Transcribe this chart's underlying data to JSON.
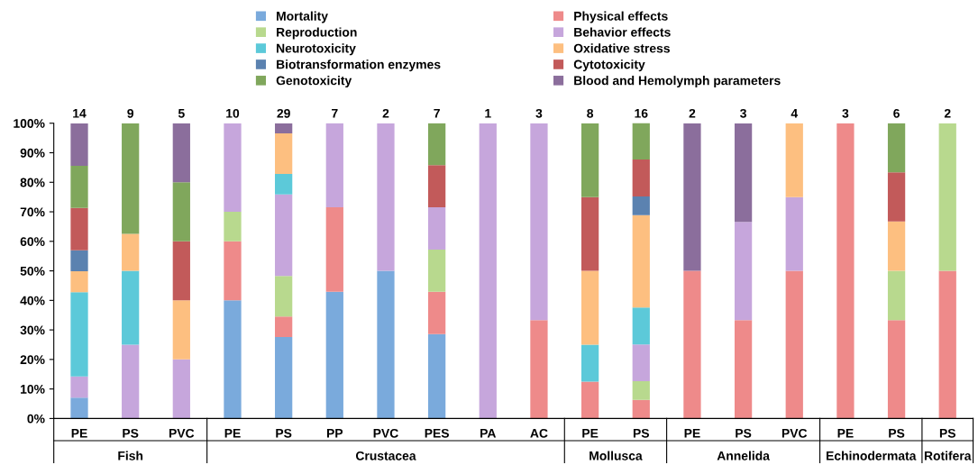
{
  "chart_data": {
    "type": "bar",
    "stacked": true,
    "categories": [
      "PE",
      "PS",
      "PVC",
      "PE",
      "PS",
      "PP",
      "PVC",
      "PES",
      "PA",
      "AC",
      "PE",
      "PS",
      "PE",
      "PS",
      "PVC",
      "PE",
      "PS",
      "PS"
    ],
    "annotations": [
      "14",
      "9",
      "5",
      "10",
      "29",
      "7",
      "2",
      "7",
      "1",
      "3",
      "8",
      "16",
      "2",
      "3",
      "4",
      "3",
      "6",
      "2",
      "Fish",
      "Crustacea",
      "Mollusca",
      "Annelida",
      "Echinodermata",
      "Rotifera"
    ],
    "series": [
      {
        "name": "Mortality",
        "color": "#7aaadc",
        "values": [
          7.1,
          0,
          0,
          40,
          27.6,
          42.9,
          50,
          28.6,
          0,
          0,
          0,
          0,
          0,
          0,
          0,
          0,
          0,
          0
        ]
      },
      {
        "name": "Physical effects",
        "color": "#ee8a8a",
        "values": [
          0,
          0,
          0,
          20,
          6.9,
          28.6,
          0,
          14.3,
          0,
          33.3,
          12.5,
          6.3,
          50,
          33.3,
          50,
          100,
          33.3,
          50
        ]
      },
      {
        "name": "Reproduction",
        "color": "#b8d98e",
        "values": [
          0,
          0,
          0,
          10,
          13.8,
          0,
          0,
          14.3,
          0,
          0,
          0,
          6.3,
          0,
          0,
          0,
          0,
          16.7,
          50
        ]
      },
      {
        "name": "Behavior effects",
        "color": "#c6a6dc",
        "values": [
          7.1,
          25,
          20,
          30,
          27.6,
          28.6,
          50,
          14.3,
          100,
          66.7,
          0,
          12.5,
          0,
          33.3,
          25,
          0,
          0,
          0
        ]
      },
      {
        "name": "Neurotoxicity",
        "color": "#5cc9d9",
        "values": [
          28.6,
          25,
          0,
          0,
          6.9,
          0,
          0,
          0,
          0,
          0,
          12.5,
          12.5,
          0,
          0,
          0,
          0,
          0,
          0
        ]
      },
      {
        "name": "Oxidative stress",
        "color": "#fdbf80",
        "values": [
          7.1,
          12.5,
          20,
          0,
          13.8,
          0,
          0,
          0,
          0,
          0,
          25,
          31.3,
          0,
          0,
          25,
          0,
          16.7,
          0
        ]
      },
      {
        "name": "Biotransformation enzymes",
        "color": "#5b82b0",
        "values": [
          7.1,
          0,
          0,
          0,
          0,
          0,
          0,
          0,
          0,
          0,
          0,
          6.3,
          0,
          0,
          0,
          0,
          0,
          0
        ]
      },
      {
        "name": "Cytotoxicity",
        "color": "#c25a5a",
        "values": [
          14.3,
          0,
          20,
          0,
          0,
          0,
          0,
          14.3,
          0,
          0,
          25,
          12.5,
          0,
          0,
          0,
          0,
          16.7,
          0
        ]
      },
      {
        "name": "Genotoxicity",
        "color": "#80a75c",
        "values": [
          14.3,
          37.5,
          20,
          0,
          0,
          0,
          0,
          14.3,
          0,
          0,
          25,
          12.5,
          0,
          0,
          0,
          0,
          16.7,
          0
        ]
      },
      {
        "name": "Blood and Hemolymph parameters",
        "color": "#8b6e9c",
        "values": [
          14.3,
          0,
          20,
          0,
          3.4,
          0,
          0,
          0,
          0,
          0,
          0,
          0,
          50,
          33.3,
          0,
          0,
          0,
          0
        ]
      }
    ],
    "ylim": [
      0,
      100
    ],
    "yticks": [
      {
        "value": 0,
        "label": "0%"
      },
      {
        "value": 10,
        "label": "10%"
      },
      {
        "value": 20,
        "label": "20%"
      },
      {
        "value": 30,
        "label": "30%"
      },
      {
        "value": 40,
        "label": "40%"
      },
      {
        "value": 50,
        "label": "50%"
      },
      {
        "value": 60,
        "label": "60%"
      },
      {
        "value": 70,
        "label": "70%"
      },
      {
        "value": 80,
        "label": "80%"
      },
      {
        "value": 90,
        "label": "90%"
      },
      {
        "value": 100,
        "label": "100%"
      }
    ],
    "legend": "top",
    "grid": false
  }
}
